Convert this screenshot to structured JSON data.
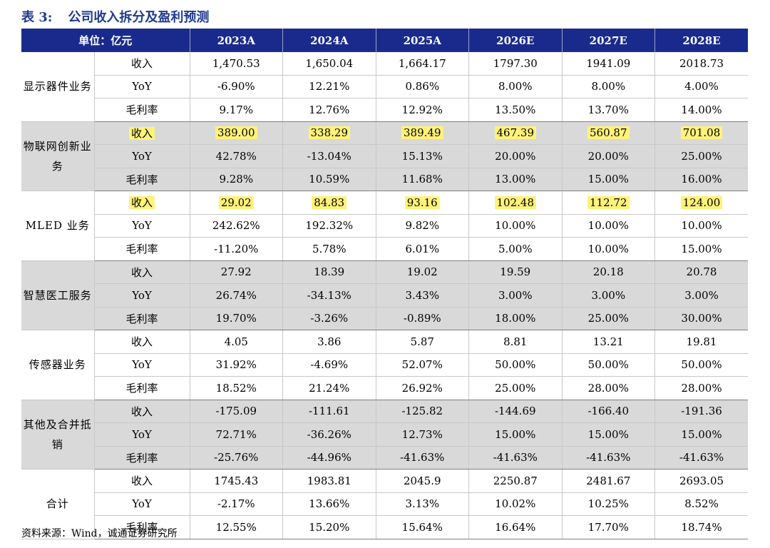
{
  "title": {
    "label": "表 3:",
    "text": "公司收入拆分及盈利预测"
  },
  "header": {
    "unit": "单位：亿元",
    "years": [
      "2023A",
      "2024A",
      "2025A",
      "2026E",
      "2027E",
      "2028E"
    ]
  },
  "colors": {
    "header_bg": "#1a2a8c",
    "title": "#1f3a93",
    "shade": "#d9d9d9",
    "highlight": "#fff27a"
  },
  "groups": [
    {
      "name": "显示器件业务",
      "shaded": false,
      "rows": [
        {
          "metric": "收入",
          "values": [
            "1,470.53",
            "1,650.04",
            "1,664.17",
            "1797.30",
            "1941.09",
            "2018.73"
          ],
          "highlight": false
        },
        {
          "metric": "YoY",
          "values": [
            "-6.90%",
            "12.21%",
            "0.86%",
            "8.00%",
            "8.00%",
            "4.00%"
          ],
          "highlight": false
        },
        {
          "metric": "毛利率",
          "values": [
            "9.17%",
            "12.76%",
            "12.92%",
            "13.50%",
            "13.70%",
            "14.00%"
          ],
          "highlight": false
        }
      ]
    },
    {
      "name": "物联网创新业务",
      "shaded": true,
      "rows": [
        {
          "metric": "收入",
          "values": [
            "389.00",
            "338.29",
            "389.49",
            "467.39",
            "560.87",
            "701.08"
          ],
          "highlight": true
        },
        {
          "metric": "YoY",
          "values": [
            "42.78%",
            "-13.04%",
            "15.13%",
            "20.00%",
            "20.00%",
            "25.00%"
          ],
          "highlight": false
        },
        {
          "metric": "毛利率",
          "values": [
            "9.28%",
            "10.59%",
            "11.68%",
            "13.00%",
            "15.00%",
            "16.00%"
          ],
          "highlight": false
        }
      ]
    },
    {
      "name": "MLED 业务",
      "shaded": false,
      "rows": [
        {
          "metric": "收入",
          "values": [
            "29.02",
            "84.83",
            "93.16",
            "102.48",
            "112.72",
            "124.00"
          ],
          "highlight": true
        },
        {
          "metric": "YoY",
          "values": [
            "242.62%",
            "192.32%",
            "9.82%",
            "10.00%",
            "10.00%",
            "10.00%"
          ],
          "highlight": false
        },
        {
          "metric": "毛利率",
          "values": [
            "-11.20%",
            "5.78%",
            "6.01%",
            "5.00%",
            "10.00%",
            "15.00%"
          ],
          "highlight": false
        }
      ]
    },
    {
      "name": "智慧医工服务",
      "shaded": true,
      "rows": [
        {
          "metric": "收入",
          "values": [
            "27.92",
            "18.39",
            "19.02",
            "19.59",
            "20.18",
            "20.78"
          ],
          "highlight": false
        },
        {
          "metric": "YoY",
          "values": [
            "26.74%",
            "-34.13%",
            "3.43%",
            "3.00%",
            "3.00%",
            "3.00%"
          ],
          "highlight": false
        },
        {
          "metric": "毛利率",
          "values": [
            "19.70%",
            "-3.26%",
            "-0.89%",
            "18.00%",
            "25.00%",
            "30.00%"
          ],
          "highlight": false
        }
      ]
    },
    {
      "name": "传感器业务",
      "shaded": false,
      "rows": [
        {
          "metric": "收入",
          "values": [
            "4.05",
            "3.86",
            "5.87",
            "8.81",
            "13.21",
            "19.81"
          ],
          "highlight": false
        },
        {
          "metric": "YoY",
          "values": [
            "31.92%",
            "-4.69%",
            "52.07%",
            "50.00%",
            "50.00%",
            "50.00%"
          ],
          "highlight": false
        },
        {
          "metric": "毛利率",
          "values": [
            "18.52%",
            "21.24%",
            "26.92%",
            "25.00%",
            "28.00%",
            "28.00%"
          ],
          "highlight": false
        }
      ]
    },
    {
      "name": "其他及合并抵销",
      "shaded": true,
      "rows": [
        {
          "metric": "收入",
          "values": [
            "-175.09",
            "-111.61",
            "-125.82",
            "-144.69",
            "-166.40",
            "-191.36"
          ],
          "highlight": false
        },
        {
          "metric": "YoY",
          "values": [
            "72.71%",
            "-36.26%",
            "12.73%",
            "15.00%",
            "15.00%",
            "15.00%"
          ],
          "highlight": false
        },
        {
          "metric": "毛利率",
          "values": [
            "-25.76%",
            "-44.96%",
            "-41.63%",
            "-41.63%",
            "-41.63%",
            "-41.63%"
          ],
          "highlight": false
        }
      ]
    },
    {
      "name": "合计",
      "shaded": false,
      "rows": [
        {
          "metric": "收入",
          "values": [
            "1745.43",
            "1983.81",
            "2045.9",
            "2250.87",
            "2481.67",
            "2693.05"
          ],
          "highlight": false
        },
        {
          "metric": "YoY",
          "values": [
            "-2.17%",
            "13.66%",
            "3.13%",
            "10.02%",
            "10.25%",
            "8.52%"
          ],
          "highlight": false
        },
        {
          "metric": "毛利率",
          "values": [
            "12.55%",
            "15.20%",
            "15.64%",
            "16.64%",
            "17.70%",
            "18.74%"
          ],
          "highlight": false
        }
      ]
    }
  ],
  "source": "资料来源：Wind，诚通证券研究所"
}
